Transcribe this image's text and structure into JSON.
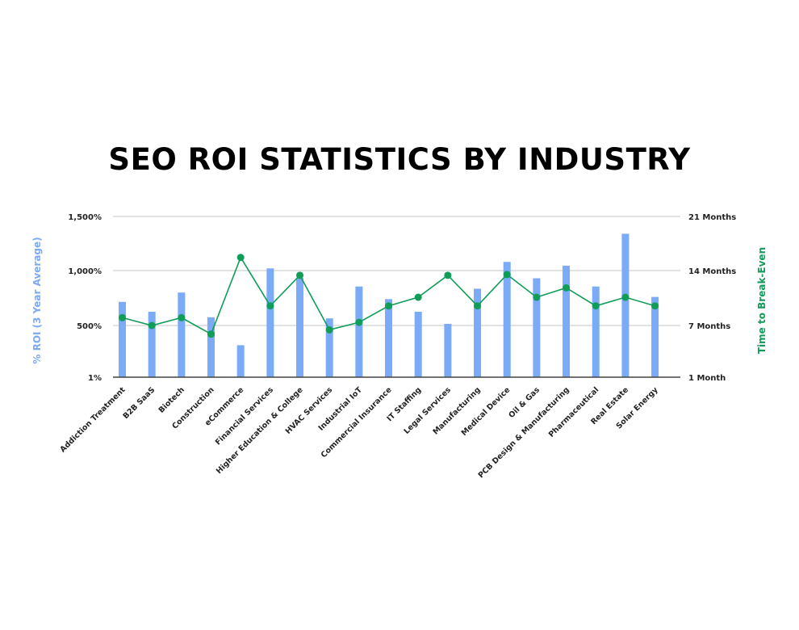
{
  "title": "SEO ROI STATISTICS BY INDUSTRY",
  "colors": {
    "bar": "#7baaf7",
    "line": "#0f9d58",
    "grid": "#d9d9d9",
    "axis": "#444444"
  },
  "chart_data": {
    "type": "bar",
    "title": "SEO ROI STATISTICS BY INDUSTRY",
    "xlabel": "",
    "ylabel": "% ROI (3 Year Average)",
    "ylabel_right": "Time to Break-Even",
    "left_axis": {
      "ticks": [
        "1%",
        "500%",
        "1,000%",
        "1,500%"
      ],
      "tick_values": [
        1,
        500,
        1000,
        1500
      ],
      "range": [
        1,
        1500
      ]
    },
    "right_axis": {
      "ticks": [
        "1 Month",
        "7 Months",
        "14 Months",
        "21 Months"
      ],
      "tick_values": [
        1,
        7,
        14,
        21
      ],
      "range": [
        1,
        21
      ]
    },
    "grid": true,
    "legend": null,
    "categories": [
      "Addiction Treatment",
      "B2B SaaS",
      "Biotech",
      "Construction",
      "eCommerce",
      "Financial Services",
      "Higher Education & College",
      "HVAC Services",
      "Industrial IoT",
      "Commercial Insurance",
      "IT Staffing",
      "Legal Services",
      "Manufacturing",
      "Medical Device",
      "Oil & Gas",
      "PCB Design & Manufacturing",
      "Pharmaceutical",
      "Real Estate",
      "Solar Energy"
    ],
    "series": [
      {
        "name": "% ROI (3 Year Average)",
        "type": "bar",
        "axis": "left",
        "values": [
          715,
          625,
          800,
          575,
          310,
          1020,
          935,
          565,
          855,
          740,
          625,
          515,
          835,
          1080,
          930,
          1045,
          855,
          1340,
          760
        ]
      },
      {
        "name": "Time to Break-Even (Months)",
        "type": "line",
        "axis": "right",
        "values": [
          8,
          7,
          8,
          6,
          15.7,
          9.5,
          13.4,
          6.5,
          7.4,
          9.5,
          10.6,
          13.4,
          9.5,
          13.5,
          10.6,
          11.8,
          9.5,
          10.6,
          9.5
        ]
      }
    ]
  }
}
